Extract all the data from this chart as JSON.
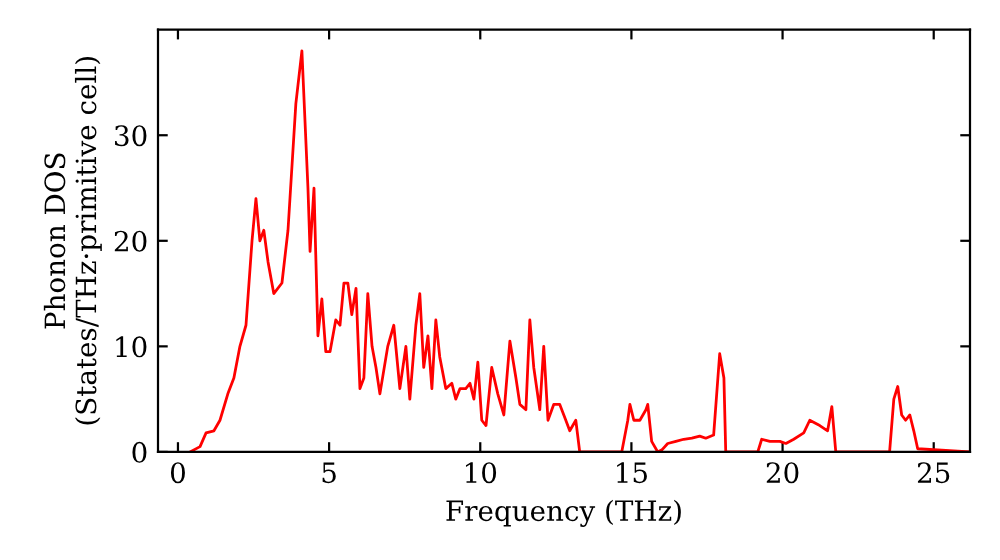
{
  "chart_data": {
    "type": "line",
    "xlabel": "Frequency (THz)",
    "ylabel": "Phonon DOS\n(States/THz·primitive cell)",
    "xlim": [
      -0.66,
      26.2
    ],
    "ylim": [
      0,
      40
    ],
    "xticks": [
      0,
      5,
      10,
      15,
      20,
      25
    ],
    "yticks": [
      0,
      10,
      20,
      30
    ],
    "grid": false,
    "legend": false,
    "marker": "none",
    "line_style": "solid",
    "x": [
      0.4,
      0.73,
      0.93,
      1.19,
      1.39,
      1.65,
      1.85,
      2.05,
      2.25,
      2.45,
      2.58,
      2.71,
      2.84,
      2.98,
      3.17,
      3.44,
      3.64,
      3.9,
      4.1,
      4.3,
      4.37,
      4.5,
      4.63,
      4.76,
      4.89,
      5.03,
      5.22,
      5.36,
      5.49,
      5.62,
      5.75,
      5.89,
      6.02,
      6.15,
      6.28,
      6.42,
      6.55,
      6.68,
      6.94,
      7.14,
      7.34,
      7.54,
      7.67,
      7.87,
      8.0,
      8.13,
      8.27,
      8.4,
      8.53,
      8.66,
      8.86,
      9.06,
      9.19,
      9.33,
      9.52,
      9.66,
      9.79,
      9.92,
      10.05,
      10.19,
      10.38,
      10.58,
      10.78,
      10.98,
      11.18,
      11.31,
      11.51,
      11.64,
      11.77,
      11.97,
      12.1,
      12.24,
      12.43,
      12.63,
      12.83,
      12.96,
      13.16,
      13.29,
      14.68,
      14.88,
      14.95,
      15.08,
      15.28,
      15.48,
      15.54,
      15.67,
      15.87,
      16.01,
      16.2,
      16.47,
      16.73,
      17.0,
      17.26,
      17.46,
      17.72,
      17.92,
      18.06,
      18.12,
      19.18,
      19.31,
      19.58,
      19.91,
      20.11,
      20.37,
      20.7,
      20.9,
      21.23,
      21.49,
      21.63,
      21.76,
      23.54,
      23.68,
      23.81,
      23.94,
      24.07,
      24.21,
      24.34,
      24.47,
      26.19
    ],
    "series": [
      {
        "color": "#ff0000",
        "values": [
          0,
          0.5,
          1.8,
          2,
          3,
          5.5,
          7,
          10,
          12,
          20,
          24,
          20,
          21,
          18,
          15,
          16,
          21,
          33,
          38,
          25,
          19,
          25,
          11,
          14.5,
          9.5,
          9.5,
          12.5,
          12,
          16,
          16,
          13,
          15.5,
          6,
          7,
          15,
          10,
          8,
          5.5,
          10,
          12,
          6,
          10,
          5,
          12,
          15,
          8,
          11,
          6,
          12.5,
          9,
          6,
          6.5,
          5,
          6,
          6,
          6.5,
          5,
          8.5,
          3,
          2.5,
          8,
          5.5,
          3.5,
          10.5,
          7,
          4.5,
          4,
          12.5,
          8,
          4,
          10,
          3,
          4.5,
          4.5,
          3,
          2,
          3,
          0,
          0,
          3,
          4.5,
          3,
          3,
          4,
          4.5,
          1,
          0,
          0.2,
          0.8,
          1,
          1.2,
          1.3,
          1.5,
          1.3,
          1.6,
          9.3,
          7,
          0,
          0,
          1.2,
          1,
          1,
          0.8,
          1.2,
          1.8,
          3,
          2.5,
          2,
          4.3,
          0,
          0,
          5,
          6.2,
          3.5,
          3,
          3.5,
          2,
          0.3,
          0
        ]
      }
    ]
  }
}
